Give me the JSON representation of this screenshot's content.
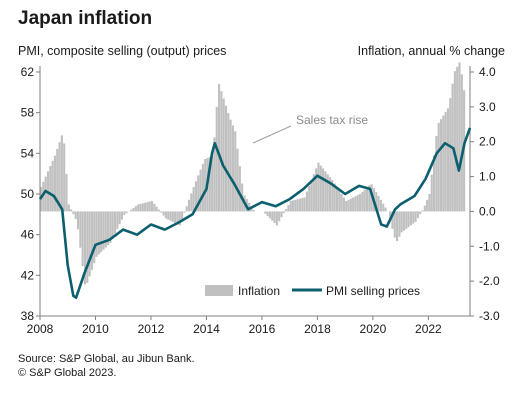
{
  "chart_data": {
    "type": "bar+line",
    "title": "Japan inflation",
    "left_axis_label": "PMI, composite selling (output) prices",
    "right_axis_label": "Inflation, annual % change",
    "x_ticks": [
      "2008",
      "2010",
      "2012",
      "2014",
      "2016",
      "2018",
      "2020",
      "2022"
    ],
    "left_ticks": [
      "38",
      "42",
      "46",
      "50",
      "54",
      "58",
      "62"
    ],
    "right_ticks": [
      "-3.0",
      "-2.0",
      "-1.0",
      "0.0",
      "1.0",
      "2.0",
      "3.0",
      "4.0"
    ],
    "left_ylim": [
      38,
      62
    ],
    "right_ylim": [
      -3.0,
      4.0
    ],
    "xlim": [
      2008.0,
      2023.5
    ],
    "legend": {
      "position": "bottom-right",
      "bar_label": "Inflation",
      "line_label": "PMI selling prices"
    },
    "annotation": "Sales tax rise",
    "colors": {
      "bars": "#c0c0c0",
      "line": "#0c5f6e",
      "axis": "#7f7f7f"
    },
    "series": [
      {
        "name": "Inflation",
        "type": "bar",
        "axis": "right",
        "points": [
          [
            2008.0,
            0.7
          ],
          [
            2008.5,
            1.6
          ],
          [
            2008.8,
            2.3
          ],
          [
            2009.0,
            0.2
          ],
          [
            2009.3,
            -0.3
          ],
          [
            2009.6,
            -2.2
          ],
          [
            2010.0,
            -1.3
          ],
          [
            2010.5,
            -0.9
          ],
          [
            2011.0,
            -0.1
          ],
          [
            2011.5,
            0.2
          ],
          [
            2012.0,
            0.3
          ],
          [
            2012.5,
            -0.2
          ],
          [
            2013.0,
            -0.4
          ],
          [
            2013.5,
            0.7
          ],
          [
            2013.9,
            1.5
          ],
          [
            2014.2,
            1.6
          ],
          [
            2014.4,
            3.7
          ],
          [
            2014.8,
            2.7
          ],
          [
            2015.0,
            2.3
          ],
          [
            2015.3,
            0.5
          ],
          [
            2015.7,
            0.0
          ],
          [
            2016.0,
            0.0
          ],
          [
            2016.5,
            -0.4
          ],
          [
            2017.0,
            0.3
          ],
          [
            2017.5,
            0.4
          ],
          [
            2018.0,
            1.4
          ],
          [
            2018.5,
            0.9
          ],
          [
            2019.0,
            0.3
          ],
          [
            2019.5,
            0.5
          ],
          [
            2019.9,
            0.8
          ],
          [
            2020.2,
            0.4
          ],
          [
            2020.5,
            0.0
          ],
          [
            2020.8,
            -0.9
          ],
          [
            2021.0,
            -0.6
          ],
          [
            2021.5,
            -0.3
          ],
          [
            2021.8,
            0.1
          ],
          [
            2022.0,
            0.5
          ],
          [
            2022.3,
            2.5
          ],
          [
            2022.7,
            3.0
          ],
          [
            2022.9,
            4.0
          ],
          [
            2023.1,
            4.3
          ],
          [
            2023.3,
            3.2
          ]
        ]
      },
      {
        "name": "PMI selling prices",
        "type": "line",
        "axis": "left",
        "points": [
          [
            2008.0,
            49.5
          ],
          [
            2008.2,
            50.3
          ],
          [
            2008.5,
            49.8
          ],
          [
            2008.8,
            48.5
          ],
          [
            2009.0,
            43.0
          ],
          [
            2009.2,
            40.0
          ],
          [
            2009.3,
            39.8
          ],
          [
            2009.6,
            42.2
          ],
          [
            2010.0,
            45.0
          ],
          [
            2010.5,
            45.5
          ],
          [
            2011.0,
            46.5
          ],
          [
            2011.5,
            46.0
          ],
          [
            2012.0,
            47.0
          ],
          [
            2012.5,
            46.5
          ],
          [
            2013.0,
            47.2
          ],
          [
            2013.5,
            48.0
          ],
          [
            2014.0,
            50.5
          ],
          [
            2014.2,
            54.0
          ],
          [
            2014.3,
            55.0
          ],
          [
            2014.6,
            52.8
          ],
          [
            2015.0,
            51.0
          ],
          [
            2015.5,
            48.5
          ],
          [
            2016.0,
            49.2
          ],
          [
            2016.5,
            48.8
          ],
          [
            2017.0,
            49.5
          ],
          [
            2017.5,
            50.5
          ],
          [
            2018.0,
            51.8
          ],
          [
            2018.5,
            51.0
          ],
          [
            2019.0,
            50.0
          ],
          [
            2019.5,
            50.8
          ],
          [
            2019.9,
            50.5
          ],
          [
            2020.3,
            47.0
          ],
          [
            2020.5,
            46.8
          ],
          [
            2020.8,
            48.5
          ],
          [
            2021.0,
            49.0
          ],
          [
            2021.5,
            49.8
          ],
          [
            2021.9,
            51.5
          ],
          [
            2022.3,
            54.0
          ],
          [
            2022.6,
            55.0
          ],
          [
            2022.9,
            54.5
          ],
          [
            2023.1,
            52.3
          ],
          [
            2023.3,
            55.0
          ],
          [
            2023.5,
            56.5
          ]
        ]
      }
    ]
  }
}
